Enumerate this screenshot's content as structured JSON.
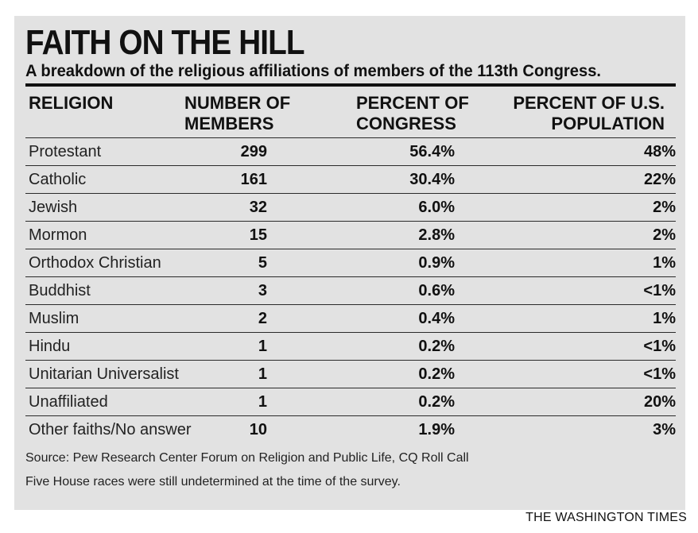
{
  "chart_data": {
    "type": "table",
    "title": "FAITH ON THE HILL",
    "subtitle": "A breakdown of the religious affiliations of members of the 113th Congress.",
    "columns": [
      [
        "RELIGION"
      ],
      [
        "NUMBER OF",
        "MEMBERS"
      ],
      [
        "PERCENT OF",
        "CONGRESS"
      ],
      [
        "PERCENT OF U.S.",
        "POPULATION"
      ]
    ],
    "rows": [
      {
        "religion": "Protestant",
        "members": "299",
        "congress": "56.4%",
        "population": "48%"
      },
      {
        "religion": "Catholic",
        "members": "161",
        "congress": "30.4%",
        "population": "22%"
      },
      {
        "religion": "Jewish",
        "members": "32",
        "congress": "6.0%",
        "population": "2%"
      },
      {
        "religion": "Mormon",
        "members": "15",
        "congress": "2.8%",
        "population": "2%"
      },
      {
        "religion": "Orthodox Christian",
        "members": "5",
        "congress": "0.9%",
        "population": "1%"
      },
      {
        "religion": "Buddhist",
        "members": "3",
        "congress": "0.6%",
        "population": "<1%"
      },
      {
        "religion": "Muslim",
        "members": "2",
        "congress": "0.4%",
        "population": "1%"
      },
      {
        "religion": "Hindu",
        "members": "1",
        "congress": "0.2%",
        "population": "<1%"
      },
      {
        "religion": "Unitarian Universalist",
        "members": "1",
        "congress": "0.2%",
        "population": "<1%"
      },
      {
        "religion": "Unaffiliated",
        "members": "1",
        "congress": "0.2%",
        "population": "20%"
      },
      {
        "religion": "Other faiths/No answer",
        "members": "10",
        "congress": "1.9%",
        "population": "3%"
      }
    ],
    "source": "Source: Pew Research Center Forum on Religion and Public Life, CQ Roll Call",
    "note": "Five House races were still undetermined at the time of the survey."
  },
  "credit": "THE WASHINGTON TIMES",
  "colors": {
    "panel_background": "#e2e2e2",
    "text": "#111111",
    "rule": "#111111"
  }
}
